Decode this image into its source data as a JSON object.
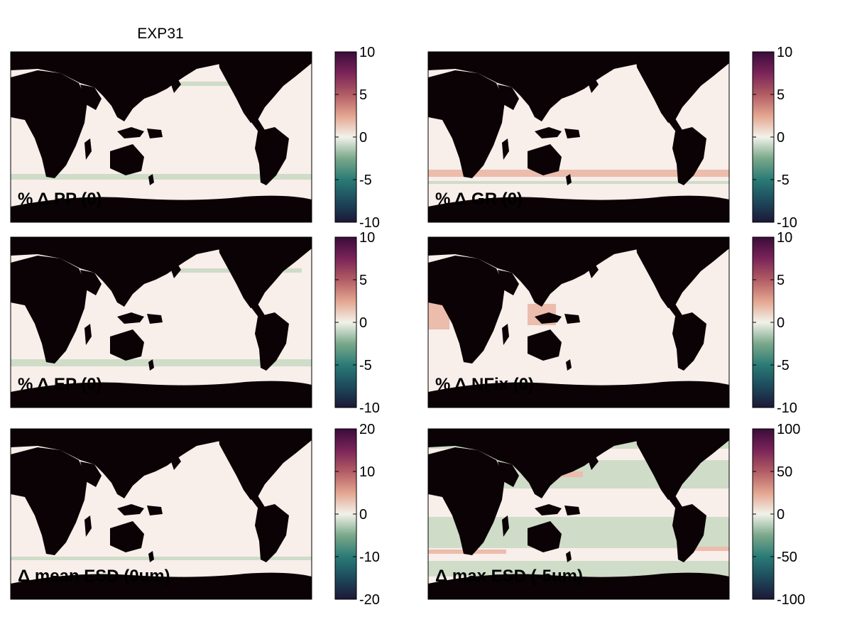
{
  "figure_title": "EXP31",
  "colors": {
    "land": "#0a0204",
    "ocean": "#f8eeea",
    "ocean_neg": "#cfdcc8",
    "ocean_pos": "#ecbcac",
    "colormap_stops": [
      "#1c1836",
      "#1d4a5c",
      "#2a7b76",
      "#7aa88a",
      "#f2f2ea",
      "#e3a590",
      "#b25c64",
      "#7a2458",
      "#3a0c3a"
    ]
  },
  "chart_data": [
    {
      "type": "heatmap",
      "title": "% Δ PP (0)",
      "colorbar": {
        "min": -10,
        "max": 10,
        "ticks": [
          "10",
          "5",
          "0",
          "-5",
          "-10"
        ]
      }
    },
    {
      "type": "heatmap",
      "title": "% Δ GR (0)",
      "colorbar": {
        "min": -10,
        "max": 10,
        "ticks": [
          "10",
          "5",
          "0",
          "-5",
          "-10"
        ]
      }
    },
    {
      "type": "heatmap",
      "title": "% Δ EP (0)",
      "colorbar": {
        "min": -10,
        "max": 10,
        "ticks": [
          "10",
          "5",
          "0",
          "-5",
          "-10"
        ]
      }
    },
    {
      "type": "heatmap",
      "title": "% Δ NFix (0)",
      "colorbar": {
        "min": -10,
        "max": 10,
        "ticks": [
          "10",
          "5",
          "0",
          "-5",
          "-10"
        ]
      }
    },
    {
      "type": "heatmap",
      "title": "Δ mean ESD (0um)",
      "colorbar": {
        "min": -20,
        "max": 20,
        "ticks": [
          "20",
          "10",
          "0",
          "-10",
          "-20"
        ]
      }
    },
    {
      "type": "heatmap",
      "title": "Δ max ESD (-5um)",
      "colorbar": {
        "min": -100,
        "max": 100,
        "ticks": [
          "100",
          "50",
          "0",
          "-50",
          "-100"
        ]
      }
    }
  ]
}
